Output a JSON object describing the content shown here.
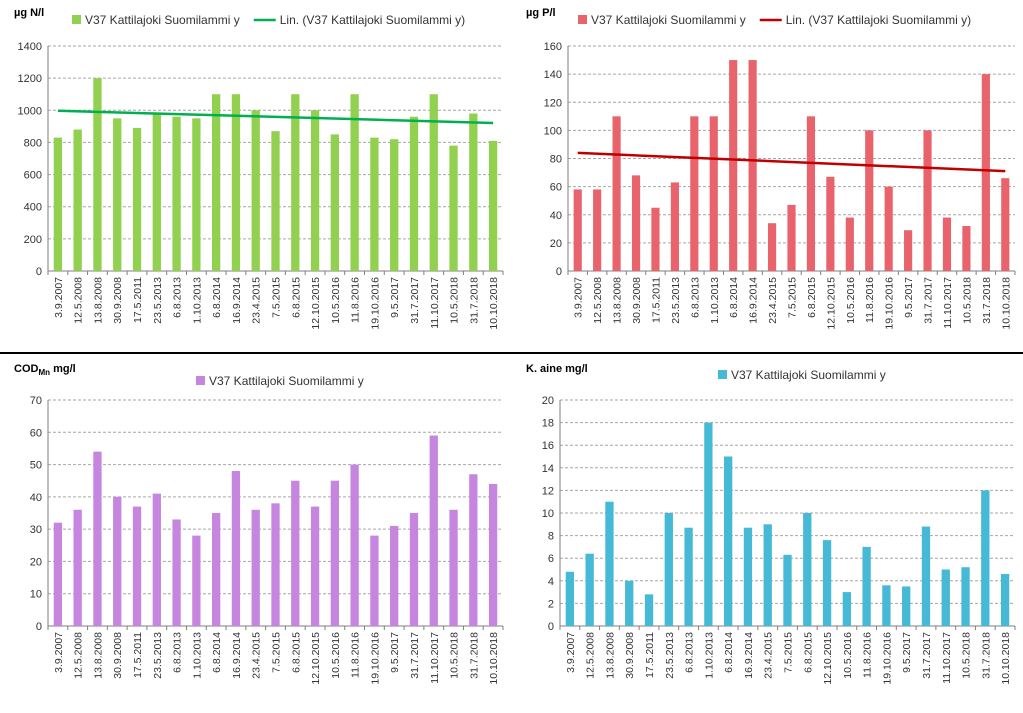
{
  "dates": [
    "3.9.2007",
    "12.5.2008",
    "13.8.2008",
    "30.9.2008",
    "17.5.2011",
    "23.5.2013",
    "6.8.2013",
    "1.10.2013",
    "6.8.2014",
    "16.9.2014",
    "23.4.2015",
    "7.5.2015",
    "6.8.2015",
    "12.10.2015",
    "10.5.2016",
    "11.8.2016",
    "19.10.2016",
    "9.5.2017",
    "31.7.2017",
    "11.10.2017",
    "10.5.2018",
    "31.7.2018",
    "10.10.2018"
  ],
  "chart_data": [
    {
      "id": "n",
      "type": "bar",
      "unit_label": "µg N/l",
      "color": "#92d050",
      "trend_color": "#00b050",
      "series_name": "V37 Kattilajoki Suomilammi y",
      "trend_name": "Lin. (V37 Kattilajoki Suomilammi y)",
      "trend": [
        997,
        921
      ],
      "ylim": [
        0,
        1400
      ],
      "ystep": 200,
      "values": [
        830,
        880,
        1200,
        950,
        890,
        980,
        960,
        950,
        1100,
        1100,
        1000,
        870,
        1100,
        1000,
        850,
        1100,
        830,
        820,
        960,
        1100,
        780,
        980,
        810
      ]
    },
    {
      "id": "p",
      "type": "bar",
      "unit_label": "µg P/l",
      "color": "#e8636c",
      "trend_color": "#c00000",
      "series_name": "V37 Kattilajoki Suomilammi y",
      "trend_name": "Lin. (V37 Kattilajoki Suomilammi y)",
      "trend": [
        84,
        71
      ],
      "ylim": [
        0,
        160
      ],
      "ystep": 20,
      "values": [
        58,
        58,
        110,
        68,
        45,
        63,
        110,
        110,
        150,
        150,
        34,
        47,
        110,
        67,
        38,
        100,
        60,
        29,
        100,
        38,
        32,
        140,
        66
      ]
    },
    {
      "id": "cod",
      "type": "bar",
      "unit_label": "COD",
      "unit_sub": "Mn",
      "unit_tail": " mg/l",
      "color": "#c686e0",
      "series_name": "V37 Kattilajoki Suomilammi y",
      "ylim": [
        0,
        70
      ],
      "ystep": 10,
      "values": [
        32,
        36,
        54,
        40,
        37,
        41,
        33,
        28,
        35,
        48,
        36,
        38,
        45,
        37,
        45,
        50,
        28,
        31,
        35,
        59,
        36,
        47,
        44
      ]
    },
    {
      "id": "ss",
      "type": "bar",
      "unit_label": "K. aine mg/l",
      "color": "#45b9d6",
      "series_name": "V37 Kattilajoki Suomilammi y",
      "ylim": [
        0,
        20
      ],
      "ystep": 2,
      "values": [
        4.8,
        6.4,
        11,
        4,
        2.8,
        10,
        8.7,
        18,
        15,
        8.7,
        9,
        6.3,
        10,
        7.6,
        3,
        7,
        3.6,
        3.5,
        8.8,
        5,
        5.2,
        12,
        4.6
      ]
    }
  ]
}
